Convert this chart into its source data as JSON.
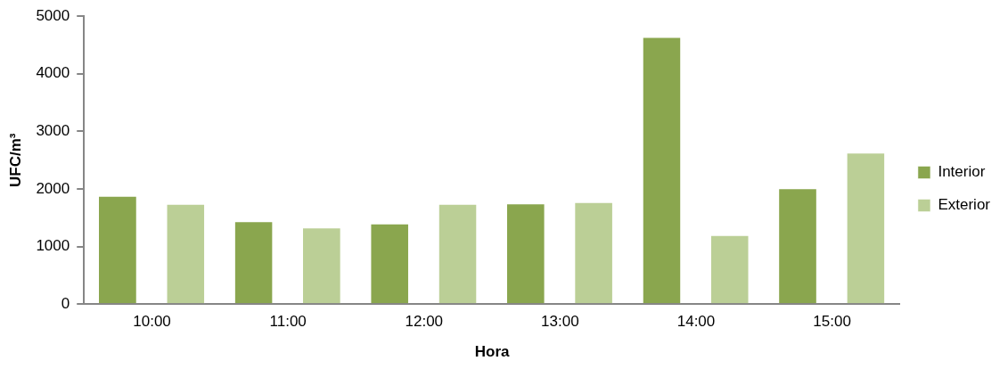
{
  "chart_data": {
    "type": "bar",
    "xlabel": "Hora",
    "ylabel": "UFC/m³",
    "categories": [
      "10:00",
      "11:00",
      "12:00",
      "13:00",
      "14:00",
      "15:00"
    ],
    "series": [
      {
        "name": "Interior",
        "color": "#8aa64e",
        "values": [
          1880,
          1440,
          1400,
          1750,
          4640,
          2010
        ]
      },
      {
        "name": "Exterior",
        "color": "#bbcf96",
        "values": [
          1740,
          1330,
          1740,
          1770,
          1200,
          2630
        ]
      }
    ],
    "ylim": [
      0,
      5000
    ],
    "yticks": [
      0,
      1000,
      2000,
      3000,
      4000,
      5000
    ],
    "grid": false,
    "legend": "right"
  }
}
